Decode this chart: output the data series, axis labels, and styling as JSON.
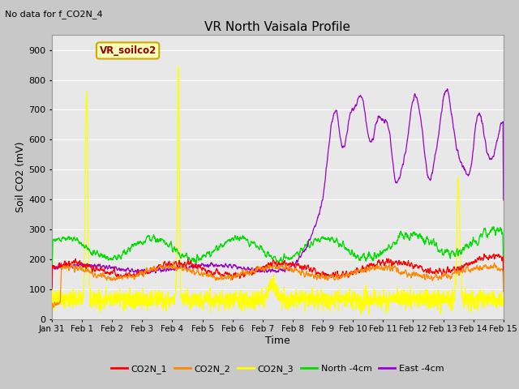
{
  "title": "VR North Vaisala Profile",
  "subtitle": "No data for f_CO2N_4",
  "box_label": "VR_soilco2",
  "xlabel": "Time",
  "ylabel": "Soil CO2 (mV)",
  "ylim": [
    0,
    950
  ],
  "yticks": [
    0,
    100,
    200,
    300,
    400,
    500,
    600,
    700,
    800,
    900
  ],
  "x_tick_labels": [
    "Jan 31",
    "Feb 1",
    "Feb 2",
    "Feb 3",
    "Feb 4",
    "Feb 5",
    "Feb 6",
    "Feb 7",
    "Feb 8",
    "Feb 9",
    "Feb 10",
    "Feb 11",
    "Feb 12",
    "Feb 13",
    "Feb 14",
    "Feb 15"
  ],
  "colors": {
    "CO2N_1": "#ff0000",
    "CO2N_2": "#ff8800",
    "CO2N_3": "#ffff00",
    "North_4cm": "#00dd00",
    "East_4cm": "#9900cc"
  },
  "fig_bg": "#c8c8c8",
  "plot_bg": "#e8e8e8",
  "grid_color": "#ffffff",
  "legend_labels": [
    "CO2N_1",
    "CO2N_2",
    "CO2N_3",
    "North -4cm",
    "East -4cm"
  ]
}
